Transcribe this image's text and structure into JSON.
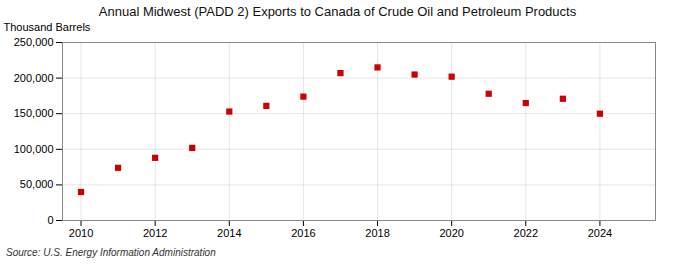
{
  "chart_data": {
    "type": "scatter",
    "title": "Annual Midwest (PADD 2) Exports to Canada of Crude Oil and Petroleum Products",
    "ylabel": "Thousand Barrels",
    "annotations": [
      "Source: U.S. Energy Information Administration"
    ],
    "x": [
      2010,
      2011,
      2012,
      2013,
      2014,
      2015,
      2016,
      2017,
      2018,
      2019,
      2020,
      2021,
      2022,
      2023,
      2024
    ],
    "values": [
      40000,
      74000,
      88000,
      102000,
      153000,
      161000,
      174000,
      207000,
      215000,
      205000,
      202000,
      178000,
      165000,
      171000,
      150000
    ],
    "color": "#cc0000",
    "marker": "square",
    "xlim": [
      2009.5,
      2025.5
    ],
    "xticks": [
      2010,
      2012,
      2014,
      2016,
      2018,
      2020,
      2022,
      2024
    ],
    "ylim": [
      0,
      250000
    ],
    "yticks": [
      0,
      {
        "value": 50000,
        "label": "50,000"
      },
      {
        "value": 100000,
        "label": "100,000"
      },
      {
        "value": 150000,
        "label": "150,000"
      },
      {
        "value": 200000,
        "label": "200,000"
      },
      {
        "value": 250000,
        "label": "250,000"
      }
    ],
    "grid": true
  }
}
